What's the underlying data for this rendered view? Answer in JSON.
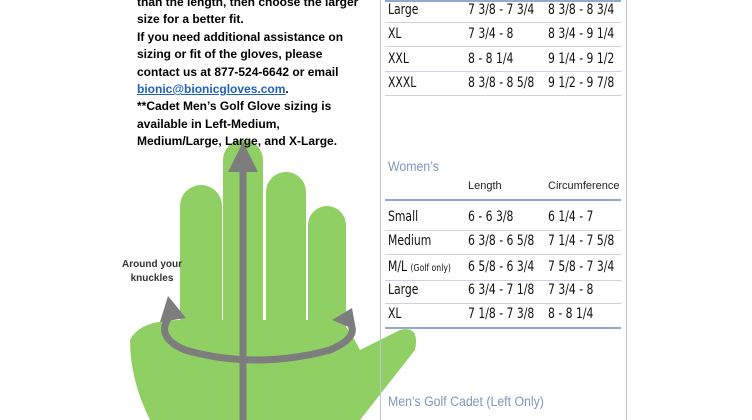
{
  "notes": {
    "lines_before": [
      "than the length, then choose the larger",
      "size for a better fit.",
      "If you need additional assistance on",
      "sizing or fit of the gloves, please",
      "contact us at 877-524-6642 or email"
    ],
    "email": "bionic@bionicgloves.com",
    "email_suffix": ".",
    "lines_after": [
      "**Cadet Men’s Golf Glove sizing is",
      "available in Left-Medium,",
      "Medium/Large, Large, and X-Large."
    ]
  },
  "hand_label": [
    "Around your",
    "knuckles"
  ],
  "mens_rows": [
    [
      "Large",
      "7 3/8 - 7 3/4",
      "8 3/8 - 8 3/4"
    ],
    [
      "XL",
      "7 3/4 - 8",
      "8 3/4 - 9 1/4"
    ],
    [
      "XXL",
      "8 - 8 1/4",
      "9 1/4 - 9 1/2"
    ],
    [
      "XXXL",
      "8 3/8 - 8 5/8",
      "9 1/2 - 9 7/8"
    ]
  ],
  "womens": {
    "title": "Women’s",
    "columns": [
      "Length",
      "Circumference"
    ],
    "rows": [
      {
        "size": "Small",
        "length": "6 - 6 3/8",
        "circumference": "6 1/4 - 7"
      },
      {
        "size": "Medium",
        "length": "6 3/8 - 6 5/8",
        "circumference": "7 1/4 - 7 5/8"
      },
      {
        "size": "M/L",
        "note": "(Golf only)",
        "length": "6 5/8 - 6 3/4",
        "circumference": "7 5/8 - 7 3/4"
      },
      {
        "size": "Large",
        "length": "6 3/4 - 7 1/8",
        "circumference": "7 3/4 - 8"
      },
      {
        "size": "XL",
        "length": "7 1/8 - 7 3/8",
        "circumference": "8 - 8 1/4"
      }
    ]
  },
  "cadet_title": "Men’s Golf Cadet (Left Only)"
}
